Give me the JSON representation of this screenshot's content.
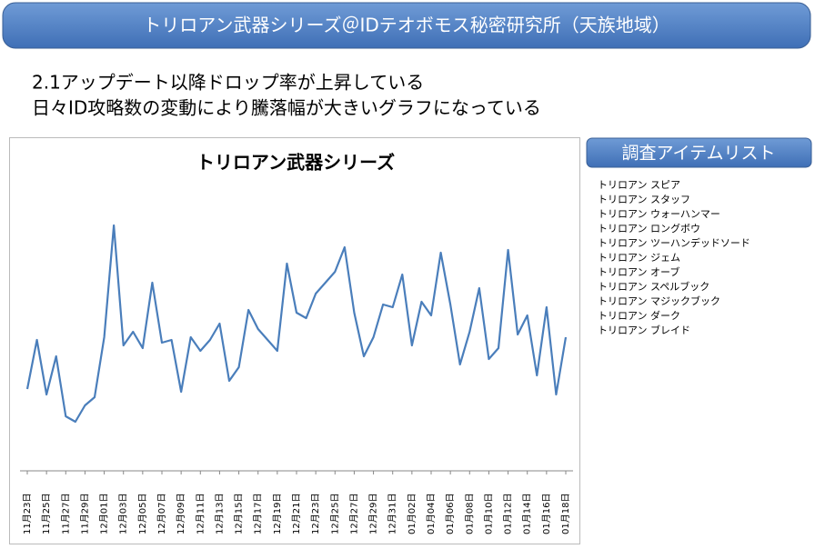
{
  "header": {
    "title": "トリロアン武器シリーズ＠IDテオボモス秘密研究所（天族地域）"
  },
  "notes": [
    "2.1アップデート以降ドロップ率が上昇している",
    "日々ID攻略数の変動により騰落幅が大きいグラフになっている"
  ],
  "item_list": {
    "title": "調査アイテムリスト",
    "items": [
      "トリロアン スピア",
      "トリロアン スタッフ",
      "トリロアン ウォーハンマー",
      "トリロアン ロングボウ",
      "トリロアン ツーハンデッドソード",
      "トリロアン ジェム",
      "トリロアン オーブ",
      "トリロアン スペルブック",
      "トリロアン マジックブック",
      "トリロアン ダーク",
      "トリロアン ブレイド"
    ]
  },
  "chart_data": {
    "type": "line",
    "title": "トリロアン武器シリーズ",
    "color": "#4a7ebb",
    "categories": [
      "11月23日",
      null,
      "11月25日",
      null,
      "11月27日",
      null,
      "11月29日",
      null,
      "12月01日",
      null,
      "12月03日",
      null,
      "12月05日",
      null,
      "12月07日",
      null,
      "12月09日",
      null,
      "12月11日",
      null,
      "12月13日",
      null,
      "12月15日",
      null,
      "12月17日",
      null,
      "12月19日",
      null,
      "12月21日",
      null,
      "12月23日",
      null,
      "12月25日",
      null,
      "12月27日",
      null,
      "12月29日",
      null,
      "12月31日",
      null,
      "01月02日",
      null,
      "01月04日",
      null,
      "01月06日",
      null,
      "01月08日",
      null,
      "01月10日",
      null,
      "01月12日",
      null,
      "01月14日",
      null,
      "01月16日",
      null,
      "01月18日"
    ],
    "values": [
      30,
      48,
      28,
      42,
      20,
      18,
      24,
      27,
      49,
      90,
      46,
      51,
      45,
      69,
      47,
      48,
      29,
      49,
      44,
      48,
      54,
      33,
      38,
      59,
      52,
      48,
      44,
      76,
      58,
      56,
      65,
      69,
      73,
      82,
      58,
      42,
      49,
      61,
      60,
      72,
      46,
      62,
      57,
      80,
      61,
      39,
      51,
      67,
      41,
      45,
      81,
      50,
      57,
      35,
      60,
      28,
      49
    ],
    "ylim": [
      0,
      100
    ]
  }
}
